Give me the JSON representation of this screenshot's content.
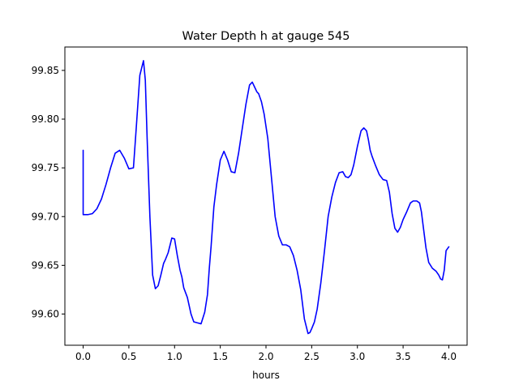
{
  "chart_data": {
    "type": "line",
    "title": "Water Depth h at gauge 545",
    "xlabel": "hours",
    "ylabel": "",
    "xlim": [
      -0.2,
      4.2
    ],
    "ylim": [
      99.568,
      99.874
    ],
    "xticks": [
      0.0,
      0.5,
      1.0,
      1.5,
      2.0,
      2.5,
      3.0,
      3.5,
      4.0
    ],
    "xtick_labels": [
      "0.0",
      "0.5",
      "1.0",
      "1.5",
      "2.0",
      "2.5",
      "3.0",
      "3.5",
      "4.0"
    ],
    "yticks": [
      99.6,
      99.65,
      99.7,
      99.75,
      99.8,
      99.85
    ],
    "ytick_labels": [
      "99.60",
      "99.65",
      "99.70",
      "99.75",
      "99.80",
      "99.85"
    ],
    "grid": false,
    "series": [
      {
        "color": "#0000ff",
        "x": [
          0.0,
          0.0,
          0.05,
          0.1,
          0.15,
          0.2,
          0.25,
          0.3,
          0.35,
          0.4,
          0.45,
          0.5,
          0.55,
          0.58,
          0.62,
          0.66,
          0.68,
          0.7,
          0.73,
          0.76,
          0.79,
          0.82,
          0.85,
          0.88,
          0.9,
          0.93,
          0.97,
          1.0,
          1.03,
          1.06,
          1.08,
          1.1,
          1.14,
          1.18,
          1.21,
          1.25,
          1.29,
          1.33,
          1.36,
          1.38,
          1.4,
          1.43,
          1.46,
          1.5,
          1.54,
          1.58,
          1.6,
          1.62,
          1.66,
          1.7,
          1.74,
          1.78,
          1.82,
          1.85,
          1.88,
          1.9,
          1.92,
          1.95,
          1.98,
          2.02,
          2.06,
          2.1,
          2.14,
          2.18,
          2.22,
          2.26,
          2.3,
          2.34,
          2.38,
          2.42,
          2.46,
          2.48,
          2.5,
          2.53,
          2.56,
          2.6,
          2.64,
          2.68,
          2.72,
          2.76,
          2.8,
          2.84,
          2.87,
          2.9,
          2.93,
          2.96,
          3.0,
          3.04,
          3.07,
          3.1,
          3.12,
          3.14,
          3.16,
          3.2,
          3.24,
          3.28,
          3.32,
          3.35,
          3.38,
          3.41,
          3.44,
          3.47,
          3.5,
          3.54,
          3.58,
          3.61,
          3.65,
          3.68,
          3.7,
          3.72,
          3.75,
          3.78,
          3.82,
          3.86,
          3.89,
          3.91,
          3.93,
          3.95,
          3.97,
          4.0
        ],
        "y": [
          99.768,
          99.702,
          99.702,
          99.703,
          99.708,
          99.718,
          99.733,
          99.75,
          99.765,
          99.768,
          99.76,
          99.749,
          99.75,
          99.79,
          99.845,
          99.86,
          99.84,
          99.78,
          99.7,
          99.64,
          99.626,
          99.629,
          99.64,
          99.652,
          99.656,
          99.663,
          99.678,
          99.677,
          99.66,
          99.645,
          99.638,
          99.627,
          99.617,
          99.6,
          99.592,
          99.591,
          99.59,
          99.602,
          99.62,
          99.647,
          99.67,
          99.71,
          99.733,
          99.758,
          99.767,
          99.758,
          99.752,
          99.746,
          99.745,
          99.765,
          99.79,
          99.815,
          99.835,
          99.838,
          99.832,
          99.828,
          99.826,
          99.818,
          99.805,
          99.78,
          99.74,
          99.7,
          99.68,
          99.671,
          99.671,
          99.669,
          99.66,
          99.645,
          99.625,
          99.595,
          99.58,
          99.581,
          99.585,
          99.592,
          99.605,
          99.632,
          99.665,
          99.7,
          99.72,
          99.735,
          99.745,
          99.746,
          99.741,
          99.74,
          99.743,
          99.753,
          99.772,
          99.788,
          99.791,
          99.788,
          99.779,
          99.768,
          99.762,
          99.752,
          99.743,
          99.738,
          99.737,
          99.725,
          99.703,
          99.688,
          99.684,
          99.689,
          99.697,
          99.705,
          99.714,
          99.716,
          99.716,
          99.714,
          99.705,
          99.69,
          99.668,
          99.653,
          99.647,
          99.644,
          99.64,
          99.636,
          99.635,
          99.645,
          99.665,
          99.669
        ]
      }
    ]
  }
}
